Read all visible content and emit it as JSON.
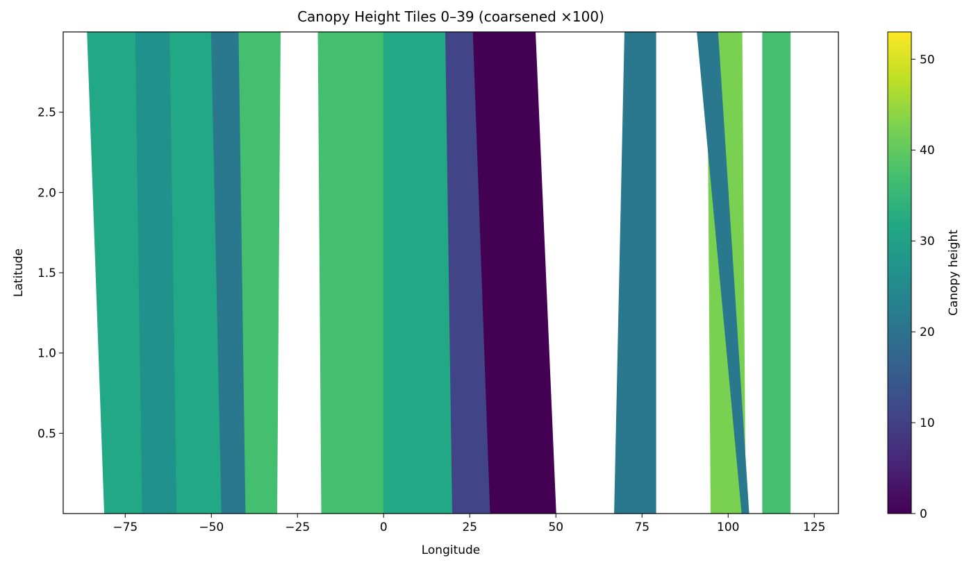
{
  "chart_data": {
    "type": "heatmap",
    "title": "Canopy Height Tiles 0–39 (coarsened ×100)",
    "xlabel": "Longitude",
    "ylabel": "Latitude",
    "xlim": [
      -93,
      132
    ],
    "ylim": [
      0.0,
      3.0
    ],
    "x_ticks": [
      -75,
      -50,
      -25,
      0,
      25,
      50,
      75,
      100,
      125
    ],
    "x_tick_labels": [
      "−75",
      "−50",
      "−25",
      "0",
      "25",
      "50",
      "75",
      "100",
      "125"
    ],
    "y_ticks": [
      0.5,
      1.0,
      1.5,
      2.0,
      2.5
    ],
    "y_tick_labels": [
      "0.5",
      "1.0",
      "1.5",
      "2.0",
      "2.5"
    ],
    "colorbar": {
      "label": "Canopy height",
      "range": [
        0,
        53
      ],
      "ticks": [
        0,
        10,
        20,
        30,
        40,
        50
      ],
      "tick_labels": [
        "0",
        "10",
        "20",
        "30",
        "40",
        "50"
      ],
      "colormap": "viridis"
    },
    "grid": false,
    "bands": [
      {
        "lon_bottom": [
          -81,
          -70
        ],
        "lon_top": [
          -86,
          -72
        ],
        "height": 30
      },
      {
        "lon_bottom": [
          -70,
          -60
        ],
        "lon_top": [
          -72,
          -62
        ],
        "height": 24
      },
      {
        "lon_bottom": [
          -60,
          -47
        ],
        "lon_top": [
          -62,
          -50
        ],
        "height": 33
      },
      {
        "lon_bottom": [
          -47,
          -40
        ],
        "lon_top": [
          -50,
          -42
        ],
        "height": 20
      },
      {
        "lon_bottom": [
          -40,
          -31
        ],
        "lon_top": [
          -42,
          -30
        ],
        "height": 38
      },
      {
        "lon_bottom": [
          -18,
          0
        ],
        "lon_top": [
          -19,
          0
        ],
        "height": 38
      },
      {
        "lon_bottom": [
          0,
          20
        ],
        "lon_top": [
          0,
          18
        ],
        "height": 31
      },
      {
        "lon_bottom": [
          20,
          31
        ],
        "lon_top": [
          18,
          26
        ],
        "height": 12
      },
      {
        "lon_bottom": [
          31,
          50
        ],
        "lon_top": [
          26,
          44
        ],
        "height": 1
      },
      {
        "lon_bottom": [
          67,
          79
        ],
        "lon_top": [
          70,
          79
        ],
        "height": 22
      },
      {
        "lon_bottom": [
          95,
          105
        ],
        "lon_top": [
          94,
          104
        ],
        "height": 40
      },
      {
        "lon_bottom": [
          104,
          106
        ],
        "lon_top": [
          91,
          97
        ],
        "height": 22
      },
      {
        "lon_bottom": [
          110,
          118
        ],
        "lon_top": [
          110,
          118
        ],
        "height": 38
      }
    ]
  }
}
